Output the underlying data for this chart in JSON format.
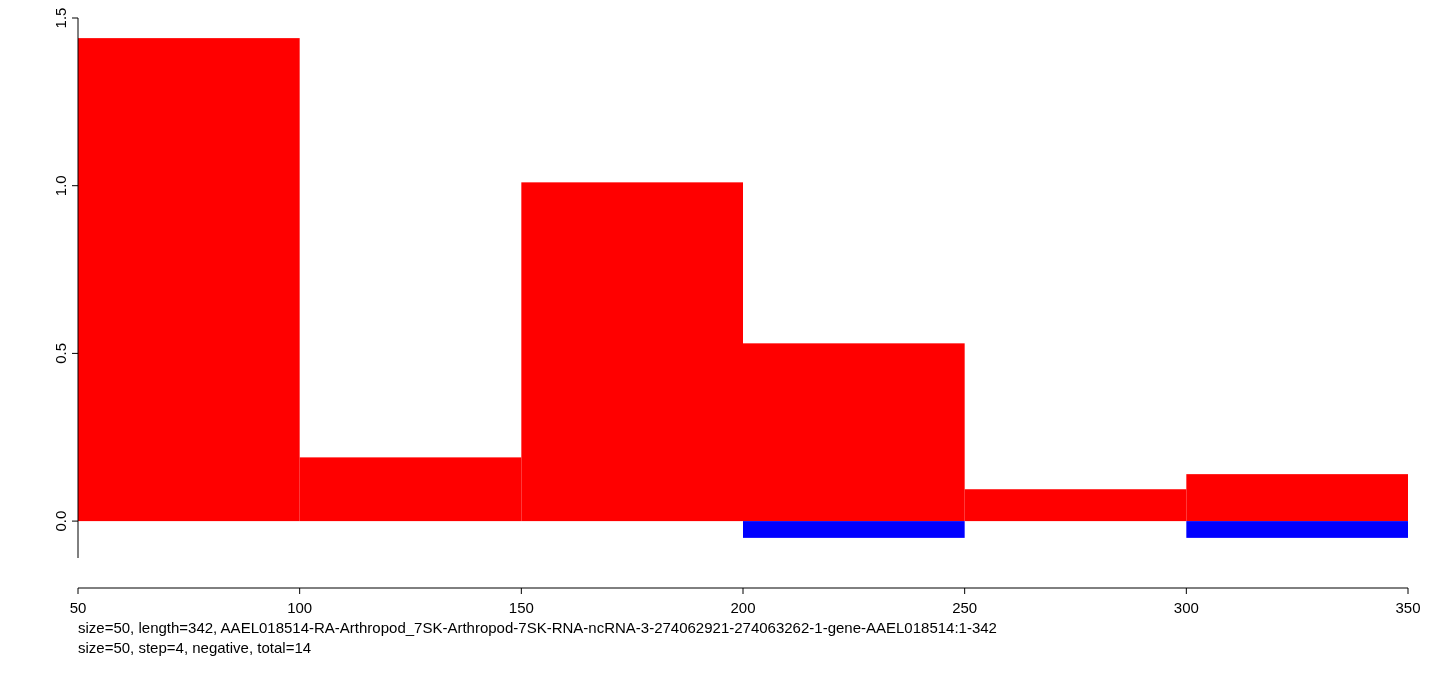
{
  "chart_data": {
    "type": "histogram",
    "bins": [
      50,
      100,
      150,
      200,
      250,
      300,
      350
    ],
    "series": [
      {
        "color": "#ff0000",
        "values": [
          1.44,
          0.19,
          1.01,
          0.53,
          0.095,
          0.14
        ]
      },
      {
        "color": "#0000ff",
        "values": [
          null,
          null,
          null,
          -0.05,
          null,
          -0.05
        ]
      }
    ],
    "xlim": [
      50,
      350
    ],
    "xticks": [
      50,
      100,
      150,
      200,
      250,
      300,
      350
    ],
    "ylim": [
      -0.11,
      1.5
    ],
    "yticks": [
      {
        "value": 0,
        "label": "0.0"
      },
      0.5,
      {
        "value": 1,
        "label": "1.0"
      },
      1.5
    ],
    "annotations": [
      "size=50, length=342, AAEL018514-RA-Arthropod_7SK-Arthropod-7SK-RNA-ncRNA-3-274062921-274063262-1-gene-AAEL018514:1-342",
      "size=50, step=4, negative, total=14"
    ]
  }
}
